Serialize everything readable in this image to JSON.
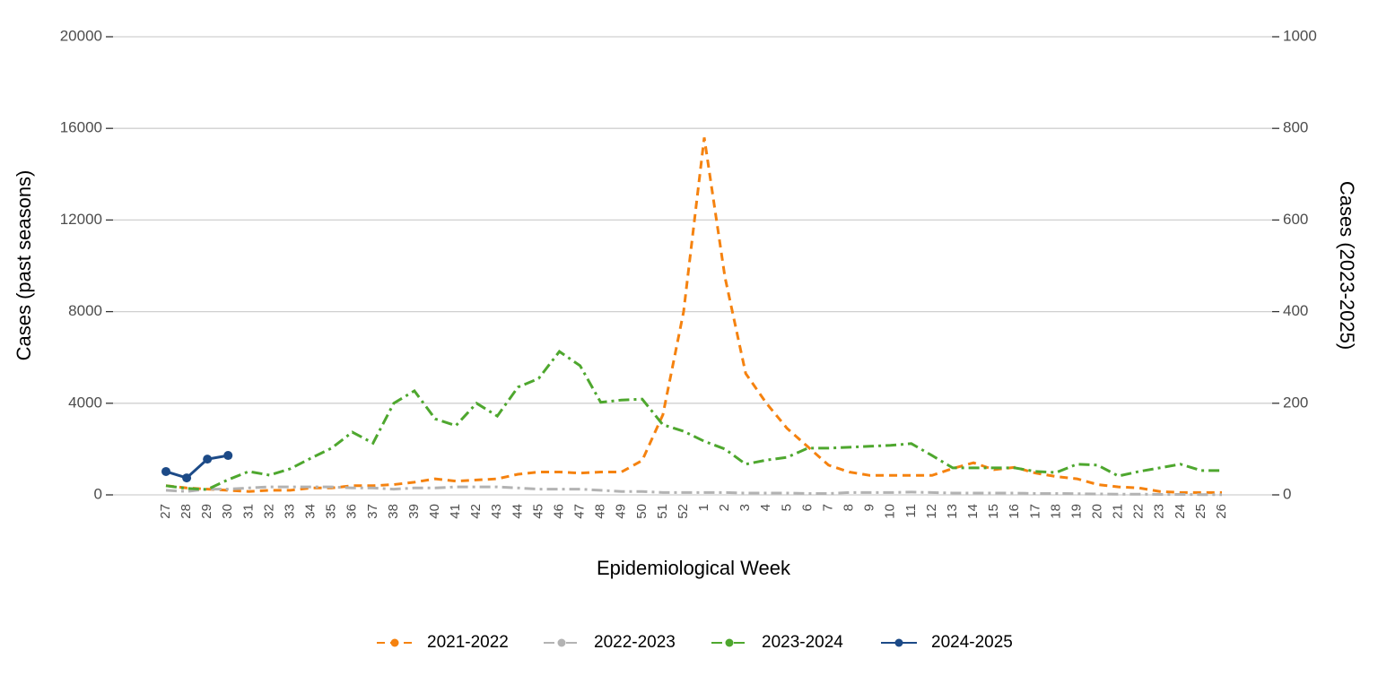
{
  "chart_data": {
    "type": "line",
    "x_label": "Epidemiological Week",
    "y_label": "Cases (past seasons)",
    "y2_label": "Cases (2023-2025)",
    "categories": [
      "27",
      "28",
      "29",
      "30",
      "31",
      "32",
      "33",
      "34",
      "35",
      "36",
      "37",
      "38",
      "39",
      "40",
      "41",
      "42",
      "43",
      "44",
      "45",
      "46",
      "47",
      "48",
      "49",
      "50",
      "51",
      "52",
      "1",
      "2",
      "3",
      "4",
      "5",
      "6",
      "7",
      "8",
      "9",
      "10",
      "11",
      "12",
      "13",
      "14",
      "15",
      "16",
      "17",
      "18",
      "19",
      "20",
      "21",
      "22",
      "23",
      "24",
      "25",
      "26"
    ],
    "ylim": [
      0,
      20000
    ],
    "yticks": [
      0,
      4000,
      8000,
      12000,
      16000,
      20000
    ],
    "y2lim": [
      0,
      1000
    ],
    "y2ticks": [
      0,
      200,
      400,
      600,
      800,
      1000
    ],
    "grid": true,
    "legend": "bottom",
    "series": [
      {
        "name": "2021-2022",
        "color": "#f5820f",
        "dash": "dashed",
        "values": [
          400,
          300,
          250,
          200,
          150,
          200,
          200,
          300,
          300,
          400,
          400,
          450,
          550,
          700,
          600,
          650,
          700,
          900,
          1000,
          1000,
          950,
          1000,
          1000,
          1500,
          3500,
          8000,
          15600,
          9500,
          5300,
          4000,
          2900,
          2100,
          1300,
          1000,
          850,
          850,
          850,
          850,
          1150,
          1400,
          1100,
          1200,
          950,
          800,
          700,
          450,
          350,
          300,
          150,
          100,
          100,
          100
        ]
      },
      {
        "name": "2022-2023",
        "color": "#b3b3b3",
        "dash": "dashdot",
        "values": [
          200,
          150,
          250,
          250,
          300,
          350,
          350,
          350,
          350,
          300,
          300,
          250,
          300,
          300,
          350,
          350,
          350,
          300,
          250,
          250,
          250,
          200,
          150,
          150,
          100,
          100,
          100,
          100,
          80,
          80,
          80,
          60,
          60,
          100,
          100,
          100,
          120,
          100,
          80,
          80,
          80,
          80,
          60,
          60,
          50,
          40,
          30,
          30,
          20,
          20,
          10,
          10
        ]
      },
      {
        "name": "2023-2024",
        "color": "#4ea72e",
        "dash": "dashdot",
        "axis": "y2",
        "values": [
          20,
          14,
          12,
          33,
          51,
          43,
          57,
          80,
          102,
          137,
          113,
          200,
          227,
          166,
          151,
          200,
          172,
          235,
          254,
          313,
          282,
          202,
          207,
          209,
          153,
          139,
          117,
          100,
          67,
          76,
          82,
          102,
          102,
          104,
          106,
          108,
          112,
          86,
          59,
          59,
          59,
          59,
          51,
          49,
          67,
          65,
          41,
          51,
          59,
          67,
          53,
          53
        ]
      },
      {
        "name": "2024-2025",
        "color": "#1c4a87",
        "dash": "solid",
        "markers": true,
        "axis": "y2",
        "values": [
          51,
          37,
          78,
          86,
          null,
          null,
          null,
          null,
          null,
          null,
          null,
          null,
          null,
          null,
          null,
          null,
          null,
          null,
          null,
          null,
          null,
          null,
          null,
          null,
          null,
          null,
          null,
          null,
          null,
          null,
          null,
          null,
          null,
          null,
          null,
          null,
          null,
          null,
          null,
          null,
          null,
          null,
          null,
          null,
          null,
          null,
          null,
          null,
          null,
          null,
          null,
          null
        ]
      }
    ]
  }
}
